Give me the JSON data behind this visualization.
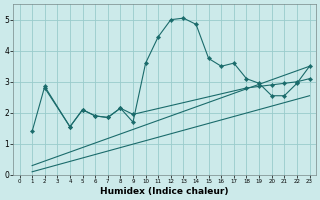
{
  "xlabel": "Humidex (Indice chaleur)",
  "bg_color": "#cceaea",
  "grid_color": "#99cccc",
  "line_color": "#1a6b6b",
  "xlim": [
    -0.5,
    23.5
  ],
  "ylim": [
    0,
    5.5
  ],
  "xticks": [
    0,
    1,
    2,
    3,
    4,
    5,
    6,
    7,
    8,
    9,
    10,
    11,
    12,
    13,
    14,
    15,
    16,
    17,
    18,
    19,
    20,
    21,
    22,
    23
  ],
  "yticks": [
    0,
    1,
    2,
    3,
    4,
    5
  ],
  "line1_x": [
    1,
    2,
    4,
    5,
    6,
    7,
    8,
    9,
    10,
    11,
    12,
    13,
    14,
    15,
    16,
    17,
    18,
    19,
    20,
    21,
    22,
    23
  ],
  "line1_y": [
    1.4,
    2.85,
    1.55,
    2.1,
    1.9,
    1.85,
    2.15,
    1.7,
    3.6,
    4.45,
    5.0,
    5.05,
    4.85,
    3.75,
    3.5,
    3.6,
    3.1,
    2.95,
    2.55,
    2.55,
    2.95,
    3.5
  ],
  "line2_x": [
    2,
    4,
    5,
    6,
    7,
    8,
    9,
    18,
    19,
    20,
    21,
    22,
    23
  ],
  "line2_y": [
    2.8,
    1.55,
    2.1,
    1.9,
    1.85,
    2.15,
    1.95,
    2.8,
    2.85,
    2.9,
    2.95,
    3.0,
    3.1
  ],
  "line3_x": [
    1,
    23
  ],
  "line3_y": [
    0.3,
    3.5
  ],
  "line4_x": [
    1,
    23
  ],
  "line4_y": [
    0.1,
    2.55
  ]
}
